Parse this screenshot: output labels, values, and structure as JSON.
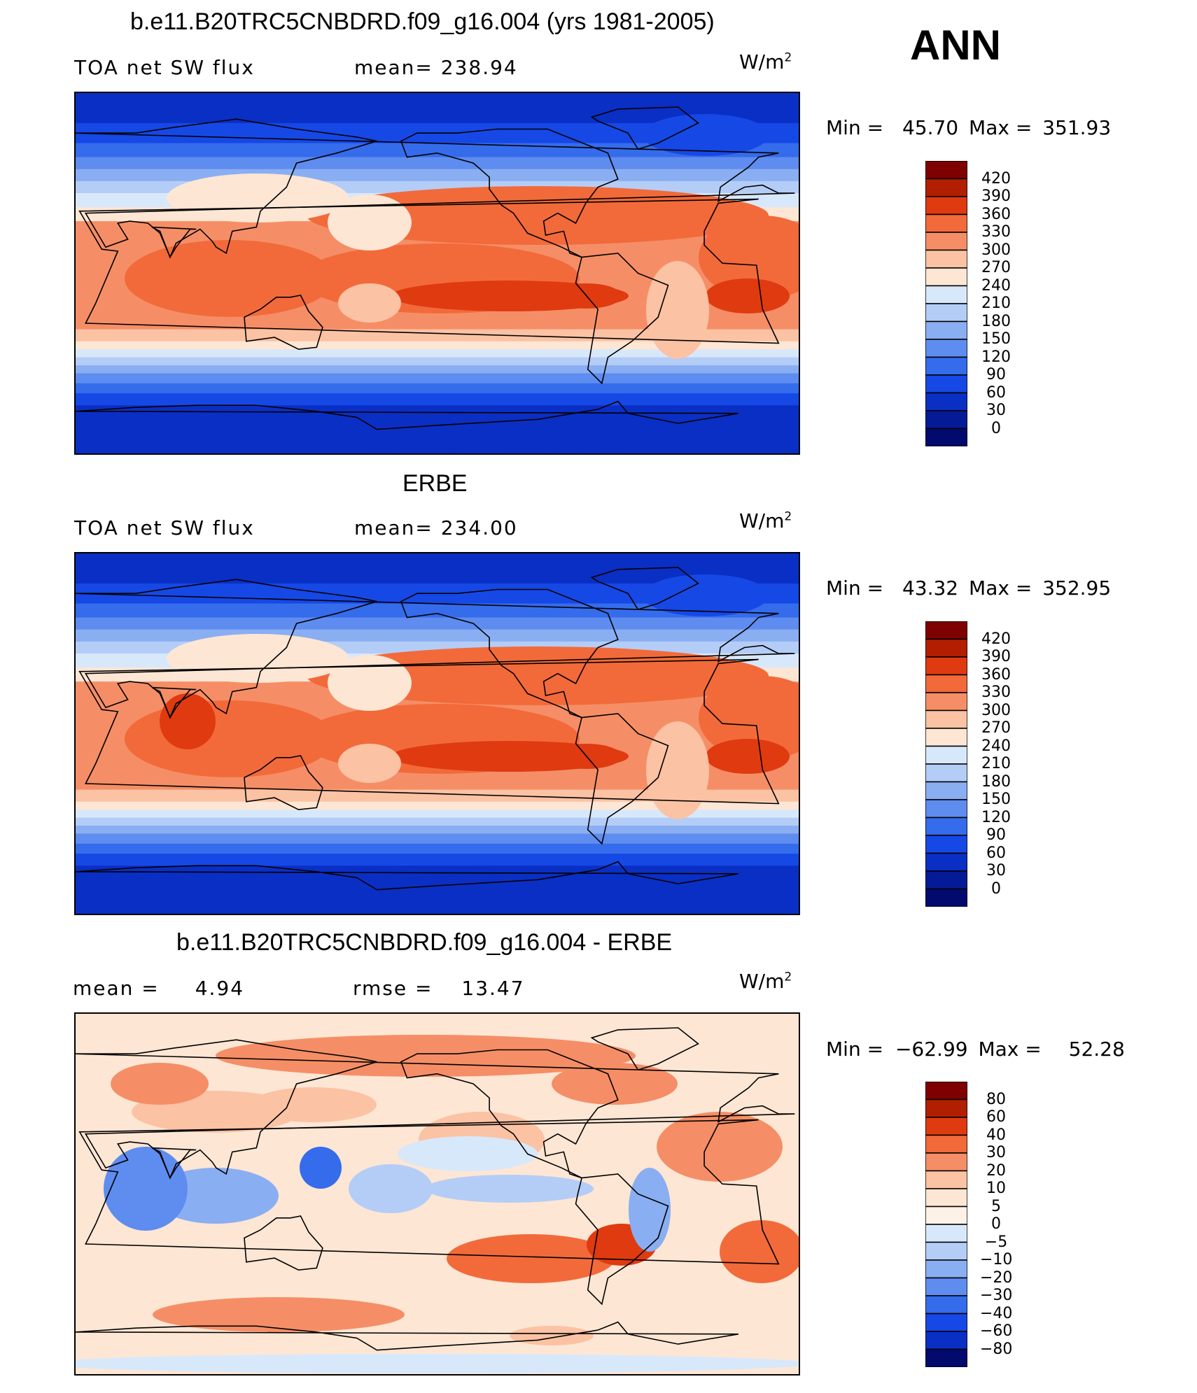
{
  "page": {
    "season": "ANN"
  },
  "panels": [
    {
      "id": "model",
      "title": "b.e11.B20TRC5CNBDRD.f09_g16.004 (yrs 1981-2005)",
      "left_label": "TOA net SW flux",
      "center_label": "mean= 238.94",
      "units": "W/m",
      "units_sup": "2",
      "min_label": "Min =",
      "min_value": "45.70",
      "max_label": "Max =",
      "max_value": "351.93",
      "colorbar_ticks": [
        "420",
        "390",
        "360",
        "330",
        "300",
        "270",
        "240",
        "210",
        "180",
        "150",
        "120",
        "90",
        "60",
        "30",
        "0"
      ]
    },
    {
      "id": "obs",
      "title": "ERBE",
      "left_label": "TOA net SW flux",
      "center_label": "mean= 234.00",
      "units": "W/m",
      "units_sup": "2",
      "min_label": "Min =",
      "min_value": "43.32",
      "max_label": "Max =",
      "max_value": "352.95",
      "colorbar_ticks": [
        "420",
        "390",
        "360",
        "330",
        "300",
        "270",
        "240",
        "210",
        "180",
        "150",
        "120",
        "90",
        "60",
        "30",
        "0"
      ]
    },
    {
      "id": "diff",
      "title": "b.e11.B20TRC5CNBDRD.f09_g16.004 - ERBE",
      "left_label": "mean =",
      "left_value": "4.94",
      "center_label": "rmse =",
      "center_value": "13.47",
      "units": "W/m",
      "units_sup": "2",
      "min_label": "Min =",
      "min_value": "−62.99",
      "max_label": "Max =",
      "max_value": "52.28",
      "colorbar_ticks": [
        "80",
        "60",
        "40",
        "30",
        "20",
        "10",
        "5",
        "0",
        "−5",
        "−10",
        "−20",
        "−30",
        "−40",
        "−60",
        "−80"
      ]
    }
  ],
  "colors": {
    "abs_scale": [
      "#7f0000",
      "#b21f00",
      "#e03a10",
      "#f26a3a",
      "#f58e66",
      "#fbc2a4",
      "#fde6d4",
      "#d8e8fb",
      "#b4cdf7",
      "#8aaef2",
      "#5f8cef",
      "#356cec",
      "#1648e6",
      "#0a2fc4",
      "#051a96",
      "#020a6e"
    ],
    "diff_scale": [
      "#7f0000",
      "#b21f00",
      "#e03a10",
      "#f26a3a",
      "#f58e66",
      "#fbc2a4",
      "#fde6d4",
      "#fdf2e8",
      "#d8e8fb",
      "#b4cdf7",
      "#8aaef2",
      "#5f8cef",
      "#356cec",
      "#1648e6",
      "#0a2fc4",
      "#020a6e"
    ]
  },
  "chart_data": [
    {
      "type": "heatmap",
      "title": "b.e11.B20TRC5CNBDRD.f09_g16.004 (yrs 1981-2005)",
      "variable": "TOA net SW flux",
      "units": "W/m2",
      "mean": 238.94,
      "min": 45.7,
      "max": 351.93,
      "levels": [
        0,
        30,
        60,
        90,
        120,
        150,
        180,
        210,
        240,
        270,
        300,
        330,
        360,
        390,
        420
      ]
    },
    {
      "type": "heatmap",
      "title": "ERBE",
      "variable": "TOA net SW flux",
      "units": "W/m2",
      "mean": 234.0,
      "min": 43.32,
      "max": 352.95,
      "levels": [
        0,
        30,
        60,
        90,
        120,
        150,
        180,
        210,
        240,
        270,
        300,
        330,
        360,
        390,
        420
      ]
    },
    {
      "type": "heatmap",
      "title": "b.e11.B20TRC5CNBDRD.f09_g16.004 - ERBE",
      "units": "W/m2",
      "mean": 4.94,
      "rmse": 13.47,
      "min": -62.99,
      "max": 52.28,
      "levels": [
        -80,
        -60,
        -40,
        -30,
        -20,
        -10,
        -5,
        0,
        5,
        10,
        20,
        30,
        40,
        60,
        80
      ]
    }
  ]
}
